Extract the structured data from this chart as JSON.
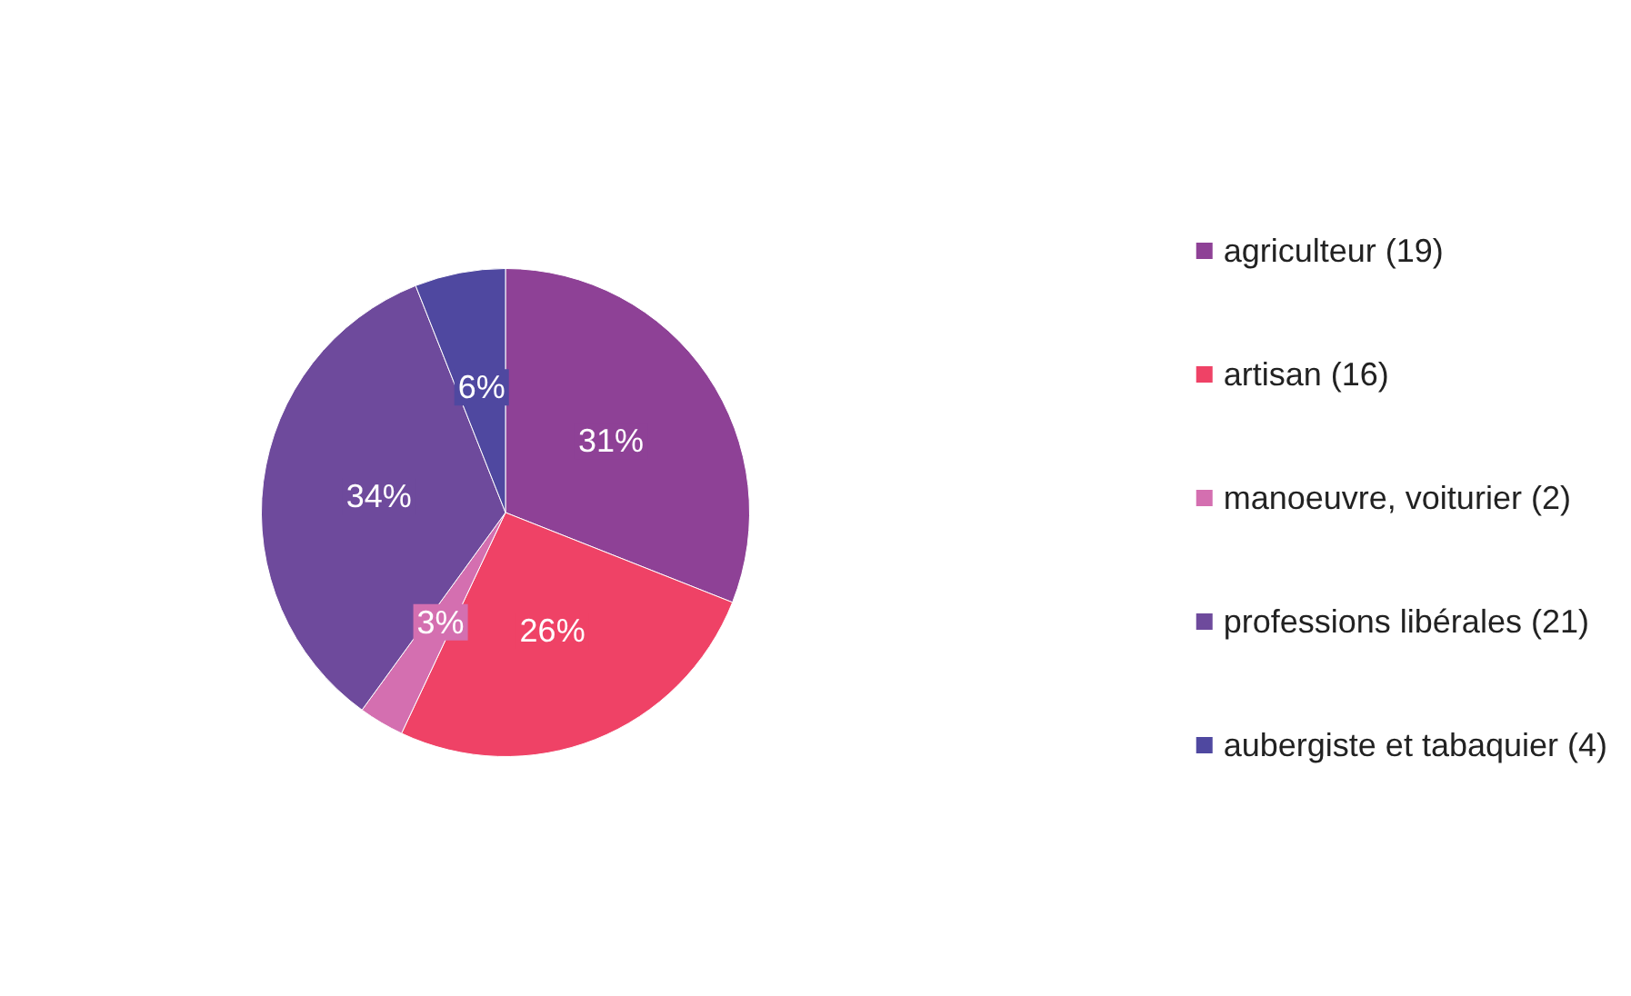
{
  "chart_data": {
    "type": "pie",
    "categories": [
      "agriculteur (19)",
      "artisan (16)",
      "manoeuvre, voiturier (2)",
      "professions libérales (21)",
      "aubergiste et tabaquier (4)"
    ],
    "values": [
      31,
      26,
      3,
      34,
      6
    ],
    "value_labels": [
      "31%",
      "26%",
      "3%",
      "34%",
      "6%"
    ],
    "colors": [
      "#8e4196",
      "#ef4266",
      "#d46fb0",
      "#6e4a9c",
      "#4f48a0"
    ],
    "legend": "right"
  }
}
